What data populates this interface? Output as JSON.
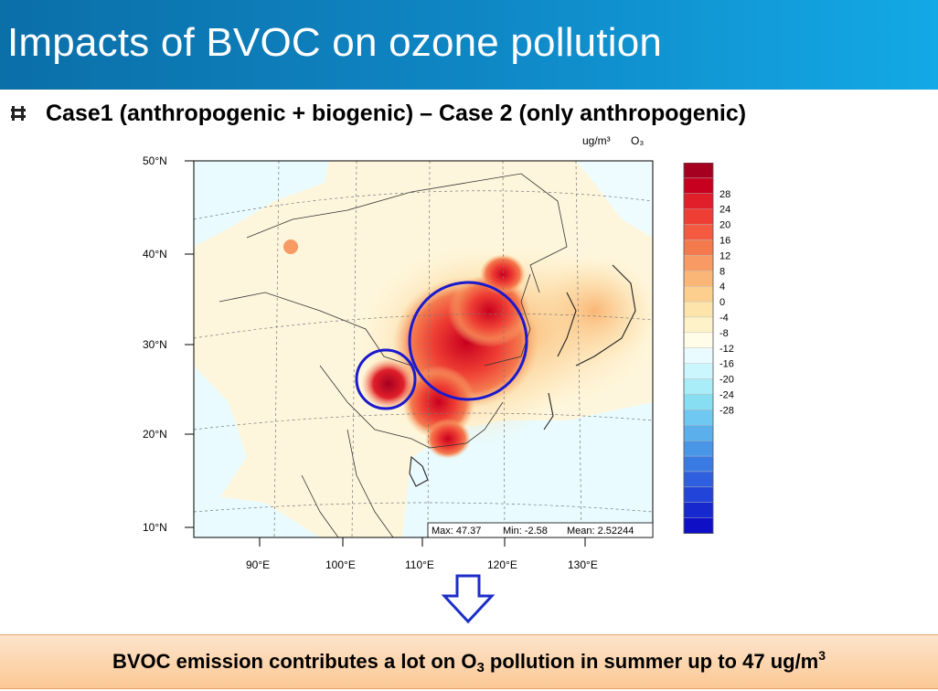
{
  "title": "Impacts of BVOC on ozone pollution",
  "bullet": {
    "icon": "square-bullet-icon",
    "text": "Case1 (anthropogenic + biogenic) – Case 2 (only anthropogenic)"
  },
  "map": {
    "units_label": "ug/m³",
    "species_label": "O₃",
    "lat_labels": [
      "50°N",
      "40°N",
      "30°N",
      "20°N",
      "10°N"
    ],
    "lon_labels": [
      "90°E",
      "100°E",
      "110°E",
      "120°E",
      "130°E"
    ],
    "stats": {
      "max_label": "Max: 47.37",
      "min_label": "Min: -2.58",
      "mean_label": "Mean: 2.52244"
    },
    "colorbar_labels": [
      "28",
      "24",
      "20",
      "16",
      "12",
      "8",
      "4",
      "0",
      "-4",
      "-8",
      "-12",
      "-16",
      "-20",
      "-24",
      "-28"
    ],
    "colorbar_colors": [
      "#a50020",
      "#c8001f",
      "#e01f2a",
      "#ee3d33",
      "#f35a40",
      "#f47a4e",
      "#f79a63",
      "#fab676",
      "#fccf8f",
      "#fde4ab",
      "#fef3c8",
      "#fffce8",
      "#e9fbff",
      "#ccf6fd",
      "#a9edf8",
      "#87def3",
      "#6ec8f1",
      "#5bb0ec",
      "#4995e6",
      "#3a7be3",
      "#2d5fdf",
      "#2244d9",
      "#1828cf",
      "#0f10c6"
    ],
    "highlight_color": "#1a1acc"
  },
  "conclusion": {
    "prefix": "BVOC emission contributes a lot on O",
    "sub": "3",
    "middle": " pollution in summer up to 47 ug/m",
    "sup": "3"
  }
}
